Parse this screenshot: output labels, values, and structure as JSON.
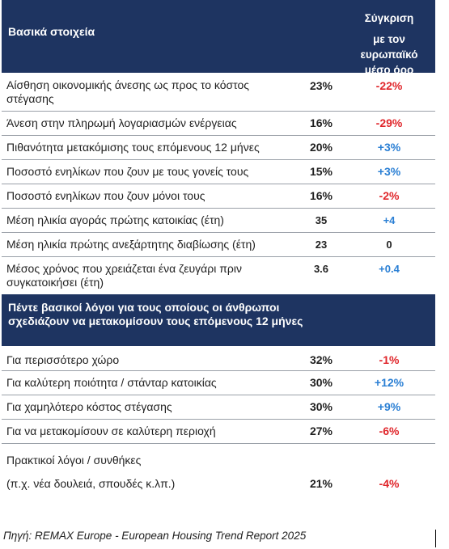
{
  "header": {
    "title": "Βασικά στοιχεία",
    "comparison_line1": "Σύγκριση",
    "comparison_line2": "με τον",
    "comparison_line3": "ευρωπαϊκό",
    "comparison_line4": "μέσο όρο"
  },
  "basic_rows": [
    {
      "label": "Αίσθηση οικονομικής άνεσης ως προς το κόστος στέγασης",
      "value": "23%",
      "comparison": "-22%",
      "tone": "neg"
    },
    {
      "label": "Άνεση στην πληρωμή λογαριασμών ενέργειας",
      "value": "16%",
      "comparison": "-29%",
      "tone": "neg"
    },
    {
      "label": "Πιθανότητα μετακόμισης τους επόμενους 12 μήνες",
      "value": "20%",
      "comparison": "+3%",
      "tone": "pos"
    },
    {
      "label": "Ποσοστό ενηλίκων που ζουν με τους γονείς τους",
      "value": "15%",
      "comparison": "+3%",
      "tone": "pos"
    },
    {
      "label": "Ποσοστό ενηλίκων που ζουν μόνοι τους",
      "value": "16%",
      "comparison": "-2%",
      "tone": "neg"
    },
    {
      "label": "Μέση ηλικία αγοράς πρώτης κατοικίας (έτη)",
      "value": "35",
      "comparison": "+4",
      "tone": "pos"
    },
    {
      "label": "Μέση ηλικία πρώτης ανεξάρτητης διαβίωσης (έτη)",
      "value": "23",
      "comparison": "0",
      "tone": "zero"
    },
    {
      "label": "Μέσος χρόνος που χρειάζεται ένα ζευγάρι πριν συγκατοικήσει (έτη)",
      "value": "3.6",
      "comparison": "+0.4",
      "tone": "pos"
    }
  ],
  "reasons_header": {
    "title": "Πέντε βασικοί λόγοι για τους οποίους οι άνθρωποι σχεδιάζουν να μετακομίσουν τους επόμενους 12 μήνες"
  },
  "reason_rows": [
    {
      "label": "Για περισσότερο χώρο",
      "value": "32%",
      "comparison": "-1%",
      "tone": "neg"
    },
    {
      "label": "Για καλύτερη ποιότητα / στάνταρ κατοικίας",
      "value": "30%",
      "comparison": "+12%",
      "tone": "pos"
    },
    {
      "label": "Για χαμηλότερο κόστος στέγασης",
      "value": "30%",
      "comparison": "+9%",
      "tone": "pos"
    },
    {
      "label": "Για να μετακομίσουν σε καλύτερη περιοχή",
      "value": "27%",
      "comparison": "-6%",
      "tone": "neg"
    }
  ],
  "last_reason": {
    "label_line1": "Πρακτικοί λόγοι / συνθήκες",
    "label_line2": "(π.χ. νέα δουλειά, σπουδές κ.λπ.)",
    "value": "21%",
    "comparison": "-4%",
    "tone": "neg"
  },
  "source": "Πηγή: REMAX Europe - European Housing Trend Report 2025",
  "colors": {
    "header_bg": "#1e3461",
    "negative": "#e0262b",
    "positive": "#2a7fd4"
  }
}
